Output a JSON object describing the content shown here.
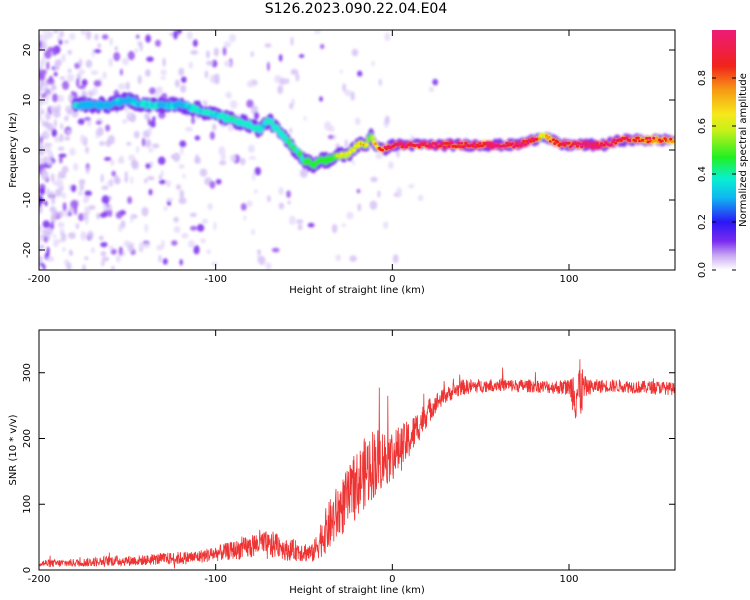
{
  "title": "S126.2023.090.22.04.E04",
  "colorbar": {
    "label": "Normalized spectral amplitude",
    "ticks": [
      "0.0",
      "0.2",
      "0.4",
      "0.6",
      "0.8"
    ],
    "tick_values": [
      0.0,
      0.2,
      0.4,
      0.6,
      0.8
    ],
    "range": [
      0,
      1
    ]
  },
  "chart_data": [
    {
      "type": "heatmap",
      "xlabel": "Height of straight line (km)",
      "ylabel": "Frequency (Hz)",
      "xlim": [
        -200,
        160
      ],
      "ylim": [
        -24,
        24
      ],
      "xticks": [
        -200,
        -100,
        0,
        100
      ],
      "xtick_labels": [
        "-200",
        "-100",
        "0",
        "100"
      ],
      "yticks": [
        -20,
        -10,
        0,
        10,
        20
      ],
      "ytick_labels": [
        "-20",
        "-10",
        "0",
        "10",
        "20"
      ],
      "ridge": {
        "x": [
          -170,
          -160,
          -150,
          -140,
          -130,
          -120,
          -110,
          -100,
          -90,
          -80,
          -75,
          -70,
          -65,
          -60,
          -55,
          -50,
          -45,
          -40,
          -35,
          -30,
          -25,
          -20,
          -15,
          -12,
          -10,
          -5,
          0,
          10,
          20,
          30,
          40,
          50,
          60,
          70,
          80,
          85,
          90,
          95,
          100,
          110,
          120,
          130,
          140,
          150,
          160
        ],
        "y": [
          9,
          9,
          10,
          9,
          9,
          9,
          8,
          7,
          6,
          5,
          4,
          6,
          4,
          2,
          0,
          -2,
          -3,
          -2,
          -2,
          -1,
          -1,
          1,
          1,
          3,
          1,
          0,
          1,
          1,
          1,
          1,
          1,
          1,
          1,
          1,
          2,
          3,
          2,
          1,
          1,
          1,
          1,
          2,
          2,
          2,
          2
        ],
        "amplitude": [
          0.3,
          0.3,
          0.3,
          0.35,
          0.35,
          0.3,
          0.35,
          0.35,
          0.4,
          0.4,
          0.35,
          0.35,
          0.4,
          0.4,
          0.45,
          0.45,
          0.5,
          0.5,
          0.5,
          0.55,
          0.6,
          0.6,
          0.65,
          0.5,
          0.7,
          0.85,
          0.9,
          0.95,
          0.95,
          0.9,
          0.95,
          0.9,
          0.95,
          0.9,
          0.95,
          0.6,
          0.85,
          0.9,
          0.9,
          0.95,
          0.95,
          0.9,
          0.85,
          0.8,
          0.8
        ]
      }
    },
    {
      "type": "line",
      "xlabel": "Height of straight line (km)",
      "ylabel": "SNR (10 * v/v)",
      "xlim": [
        -200,
        160
      ],
      "ylim": [
        0,
        365
      ],
      "xticks": [
        -200,
        -100,
        0,
        100
      ],
      "xtick_labels": [
        "-200",
        "-100",
        "0",
        "100"
      ],
      "yticks": [
        0,
        100,
        200,
        300
      ],
      "ytick_labels": [
        "0",
        "100",
        "200",
        "300"
      ],
      "color": "#ee3333",
      "series": [
        {
          "x": [
            -200,
            -190,
            -180,
            -170,
            -160,
            -150,
            -140,
            -130,
            -120,
            -110,
            -100,
            -90,
            -80,
            -75,
            -70,
            -65,
            -60,
            -55,
            -50,
            -45,
            -40,
            -35,
            -30,
            -25,
            -20,
            -15,
            -10,
            -5,
            0,
            5,
            10,
            15,
            20,
            25,
            30,
            35,
            40,
            50,
            60,
            70,
            80,
            90,
            100,
            105,
            110,
            120,
            130,
            140,
            150,
            160
          ],
          "y": [
            10,
            10,
            11,
            12,
            14,
            14,
            15,
            17,
            18,
            20,
            25,
            30,
            35,
            42,
            35,
            40,
            30,
            30,
            28,
            25,
            50,
            70,
            90,
            110,
            130,
            150,
            165,
            170,
            175,
            185,
            200,
            220,
            240,
            255,
            265,
            272,
            278,
            280,
            282,
            280,
            280,
            278,
            278,
            270,
            278,
            280,
            280,
            278,
            278,
            275
          ],
          "noise": [
            6,
            6,
            6,
            7,
            8,
            8,
            8,
            9,
            10,
            10,
            12,
            14,
            18,
            20,
            22,
            20,
            16,
            16,
            16,
            14,
            30,
            40,
            45,
            45,
            50,
            55,
            55,
            45,
            40,
            35,
            30,
            25,
            20,
            15,
            12,
            12,
            12,
            10,
            10,
            10,
            10,
            10,
            12,
            60,
            12,
            10,
            10,
            10,
            10,
            10
          ]
        }
      ]
    }
  ]
}
